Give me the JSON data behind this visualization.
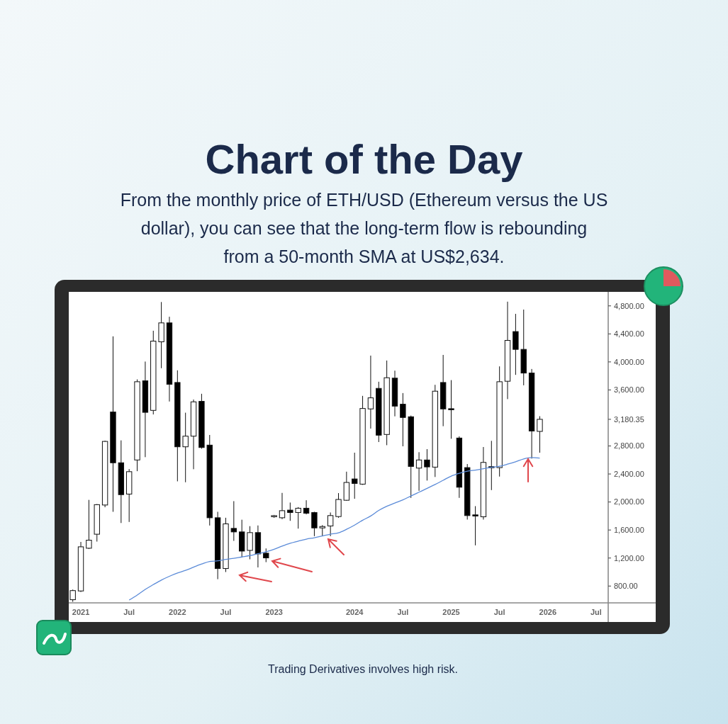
{
  "chart_data": {
    "type": "candlestick",
    "title": "Chart of the Day",
    "subtitle": "From the monthly price of ETH/USD (Ethereum versus the US dollar), you can see that the long-term flow is rebounding from a 50-month SMA at US$2,634.",
    "annotations": [
      "Trading Derivatives involves high risk."
    ],
    "categories": [
      null,
      "2021",
      null,
      null,
      null,
      null,
      null,
      "Jul",
      null,
      null,
      null,
      null,
      null,
      "2022",
      null,
      null,
      null,
      null,
      null,
      "Jul",
      null,
      null,
      null,
      null,
      null,
      "2023",
      null,
      null,
      null,
      null,
      null,
      null,
      null,
      null,
      null,
      "2024",
      null,
      null,
      null,
      null,
      null,
      "Jul",
      null,
      null,
      null,
      null,
      null,
      "2025",
      null,
      null,
      null,
      null,
      null,
      "Jul",
      null,
      null,
      null,
      null,
      null,
      "2026",
      null,
      null,
      null,
      null,
      null,
      "Jul",
      null
    ],
    "ohlc": [
      [
        605,
        750,
        575,
        735
      ],
      [
        730,
        1430,
        715,
        1360
      ],
      [
        1340,
        2030,
        1330,
        1455
      ],
      [
        1540,
        1970,
        1435,
        1962
      ],
      [
        1957,
        2875,
        1925,
        2865
      ],
      [
        3285,
        4365,
        1860,
        2560
      ],
      [
        2560,
        2880,
        1700,
        2105
      ],
      [
        2113,
        2470,
        1715,
        2433
      ],
      [
        2600,
        3750,
        2440,
        3717
      ],
      [
        3730,
        4005,
        2640,
        3280
      ],
      [
        3308,
        4445,
        3250,
        4297
      ],
      [
        4287,
        4855,
        3910,
        4557
      ],
      [
        4557,
        4645,
        3435,
        3681
      ],
      [
        3706,
        3880,
        2295,
        2788
      ],
      [
        2788,
        3275,
        2282,
        2940
      ],
      [
        2940,
        3463,
        2468,
        3430
      ],
      [
        3437,
        3545,
        2760,
        2778
      ],
      [
        2812,
        2957,
        1664,
        1775
      ],
      [
        1775,
        1860,
        898,
        1050
      ],
      [
        1050,
        1775,
        1000,
        1688
      ],
      [
        1623,
        2012,
        1445,
        1573
      ],
      [
        1573,
        1747,
        1208,
        1299
      ],
      [
        1309,
        1655,
        1182,
        1563
      ],
      [
        1563,
        1665,
        1066,
        1259
      ],
      [
        1269,
        1337,
        1141,
        1202
      ],
      [
        1790,
        1815,
        1775,
        1805
      ],
      [
        1775,
        2130,
        1755,
        1876
      ],
      [
        1884,
        1992,
        1731,
        1850
      ],
      [
        1850,
        1927,
        1620,
        1911
      ],
      [
        1911,
        2025,
        1823,
        1840
      ],
      [
        1850,
        1860,
        1512,
        1630
      ],
      [
        1630,
        1670,
        1520,
        1650
      ],
      [
        1658,
        1850,
        1512,
        1806
      ],
      [
        1792,
        2127,
        1775,
        2036
      ],
      [
        2025,
        2433,
        2018,
        2279
      ],
      [
        2329,
        2704,
        2046,
        2265
      ],
      [
        2255,
        3515,
        2245,
        3335
      ],
      [
        3329,
        4090,
        3048,
        3487
      ],
      [
        3622,
        3717,
        2856,
        2954
      ],
      [
        2964,
        4020,
        2811,
        3774
      ],
      [
        3768,
        3875,
        3223,
        3369
      ],
      [
        3396,
        3555,
        2795,
        3207
      ],
      [
        3217,
        3234,
        2059,
        2508
      ],
      [
        2484,
        2711,
        2160,
        2600
      ],
      [
        2600,
        2755,
        2306,
        2501
      ],
      [
        2498,
        3673,
        2357,
        3582
      ],
      [
        3706,
        4100,
        3082,
        3329
      ],
      [
        3332,
        3740,
        2903,
        3320
      ],
      [
        2913,
        2937,
        2059,
        2211
      ],
      [
        2491,
        2542,
        1749,
        1806
      ],
      [
        1816,
        1941,
        1381,
        1800
      ],
      [
        1789,
        2785,
        1749,
        2565
      ],
      [
        2505,
        2873,
        2170,
        2490
      ],
      [
        2491,
        3936,
        2363,
        3717
      ],
      [
        3724,
        4860,
        3469,
        4307
      ],
      [
        4433,
        4686,
        3815,
        4179
      ],
      [
        4179,
        4747,
        3666,
        3841
      ],
      [
        3841,
        3899,
        2620,
        3014
      ],
      [
        3008,
        3225,
        2704,
        3180.35
      ],
      null,
      null,
      null,
      null,
      null,
      null,
      null,
      null
    ],
    "series": [
      {
        "type": "line",
        "color": "#5b8bd8",
        "values": [
          null,
          null,
          null,
          null,
          null,
          null,
          null,
          600,
          672,
          752,
          820,
          885,
          939,
          985,
          1023,
          1070,
          1114,
          1151,
          1160,
          1180,
          1195,
          1215,
          1235,
          1262,
          1290,
          1325,
          1370,
          1410,
          1440,
          1470,
          1490,
          1515,
          1540,
          1560,
          1610,
          1670,
          1740,
          1800,
          1880,
          1940,
          1985,
          2030,
          2086,
          2140,
          2194,
          2250,
          2310,
          2370,
          2410,
          2440,
          2455,
          2475,
          2495,
          2510,
          2540,
          2575,
          2615,
          2634,
          2626,
          null,
          null,
          null,
          null,
          null,
          null,
          null,
          null
        ]
      }
    ],
    "ylim": [
      560,
      5000
    ],
    "yticks": [
      {
        "value": 800,
        "label": "800.00"
      },
      {
        "value": 1200,
        "label": "1,200.00"
      },
      {
        "value": 1600,
        "label": "1,600.00"
      },
      {
        "value": 2000,
        "label": "2,000.00"
      },
      {
        "value": 2400,
        "label": "2,400.00"
      },
      {
        "value": 2800,
        "label": "2,800.00"
      },
      {
        "value": 3180.35,
        "label": "3,180.35"
      },
      {
        "value": 3600,
        "label": "3,600.00"
      },
      {
        "value": 4000,
        "label": "4,000.00"
      },
      {
        "value": 4400,
        "label": "4,400.00"
      },
      {
        "value": 4800,
        "label": "4,800.00"
      }
    ]
  }
}
